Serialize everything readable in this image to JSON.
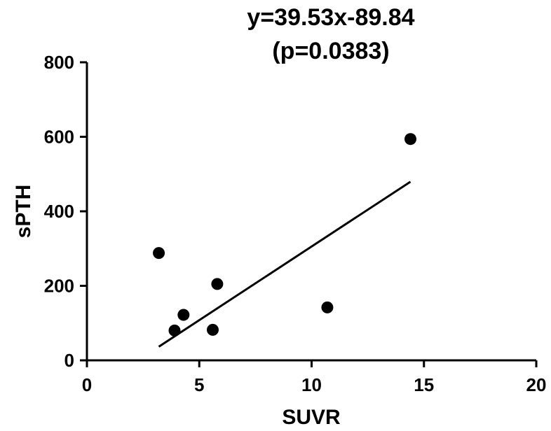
{
  "chart_data": {
    "type": "scatter",
    "title": "y=39.53x-89.84",
    "subtitle": "(p=0.0383)",
    "xlabel": "SUVR",
    "ylabel": "sPTH",
    "xlim": [
      0,
      20
    ],
    "ylim": [
      0,
      800
    ],
    "x_ticks": [
      0,
      5,
      10,
      15,
      20
    ],
    "y_ticks": [
      0,
      200,
      400,
      600,
      800
    ],
    "x_tick_labels": [
      "0",
      "5",
      "10",
      "15",
      "20"
    ],
    "y_tick_labels": [
      "0",
      "200",
      "400",
      "600",
      "800"
    ],
    "grid": false,
    "series": [
      {
        "points": [
          {
            "x": 3.2,
            "y": 288
          },
          {
            "x": 3.9,
            "y": 80
          },
          {
            "x": 4.3,
            "y": 122
          },
          {
            "x": 5.6,
            "y": 82
          },
          {
            "x": 5.8,
            "y": 205
          },
          {
            "x": 10.7,
            "y": 142
          },
          {
            "x": 14.4,
            "y": 594
          }
        ],
        "color": "#000000"
      }
    ],
    "regression": {
      "slope": 39.53,
      "intercept": -89.84,
      "x_range": [
        3.2,
        14.4
      ]
    }
  }
}
